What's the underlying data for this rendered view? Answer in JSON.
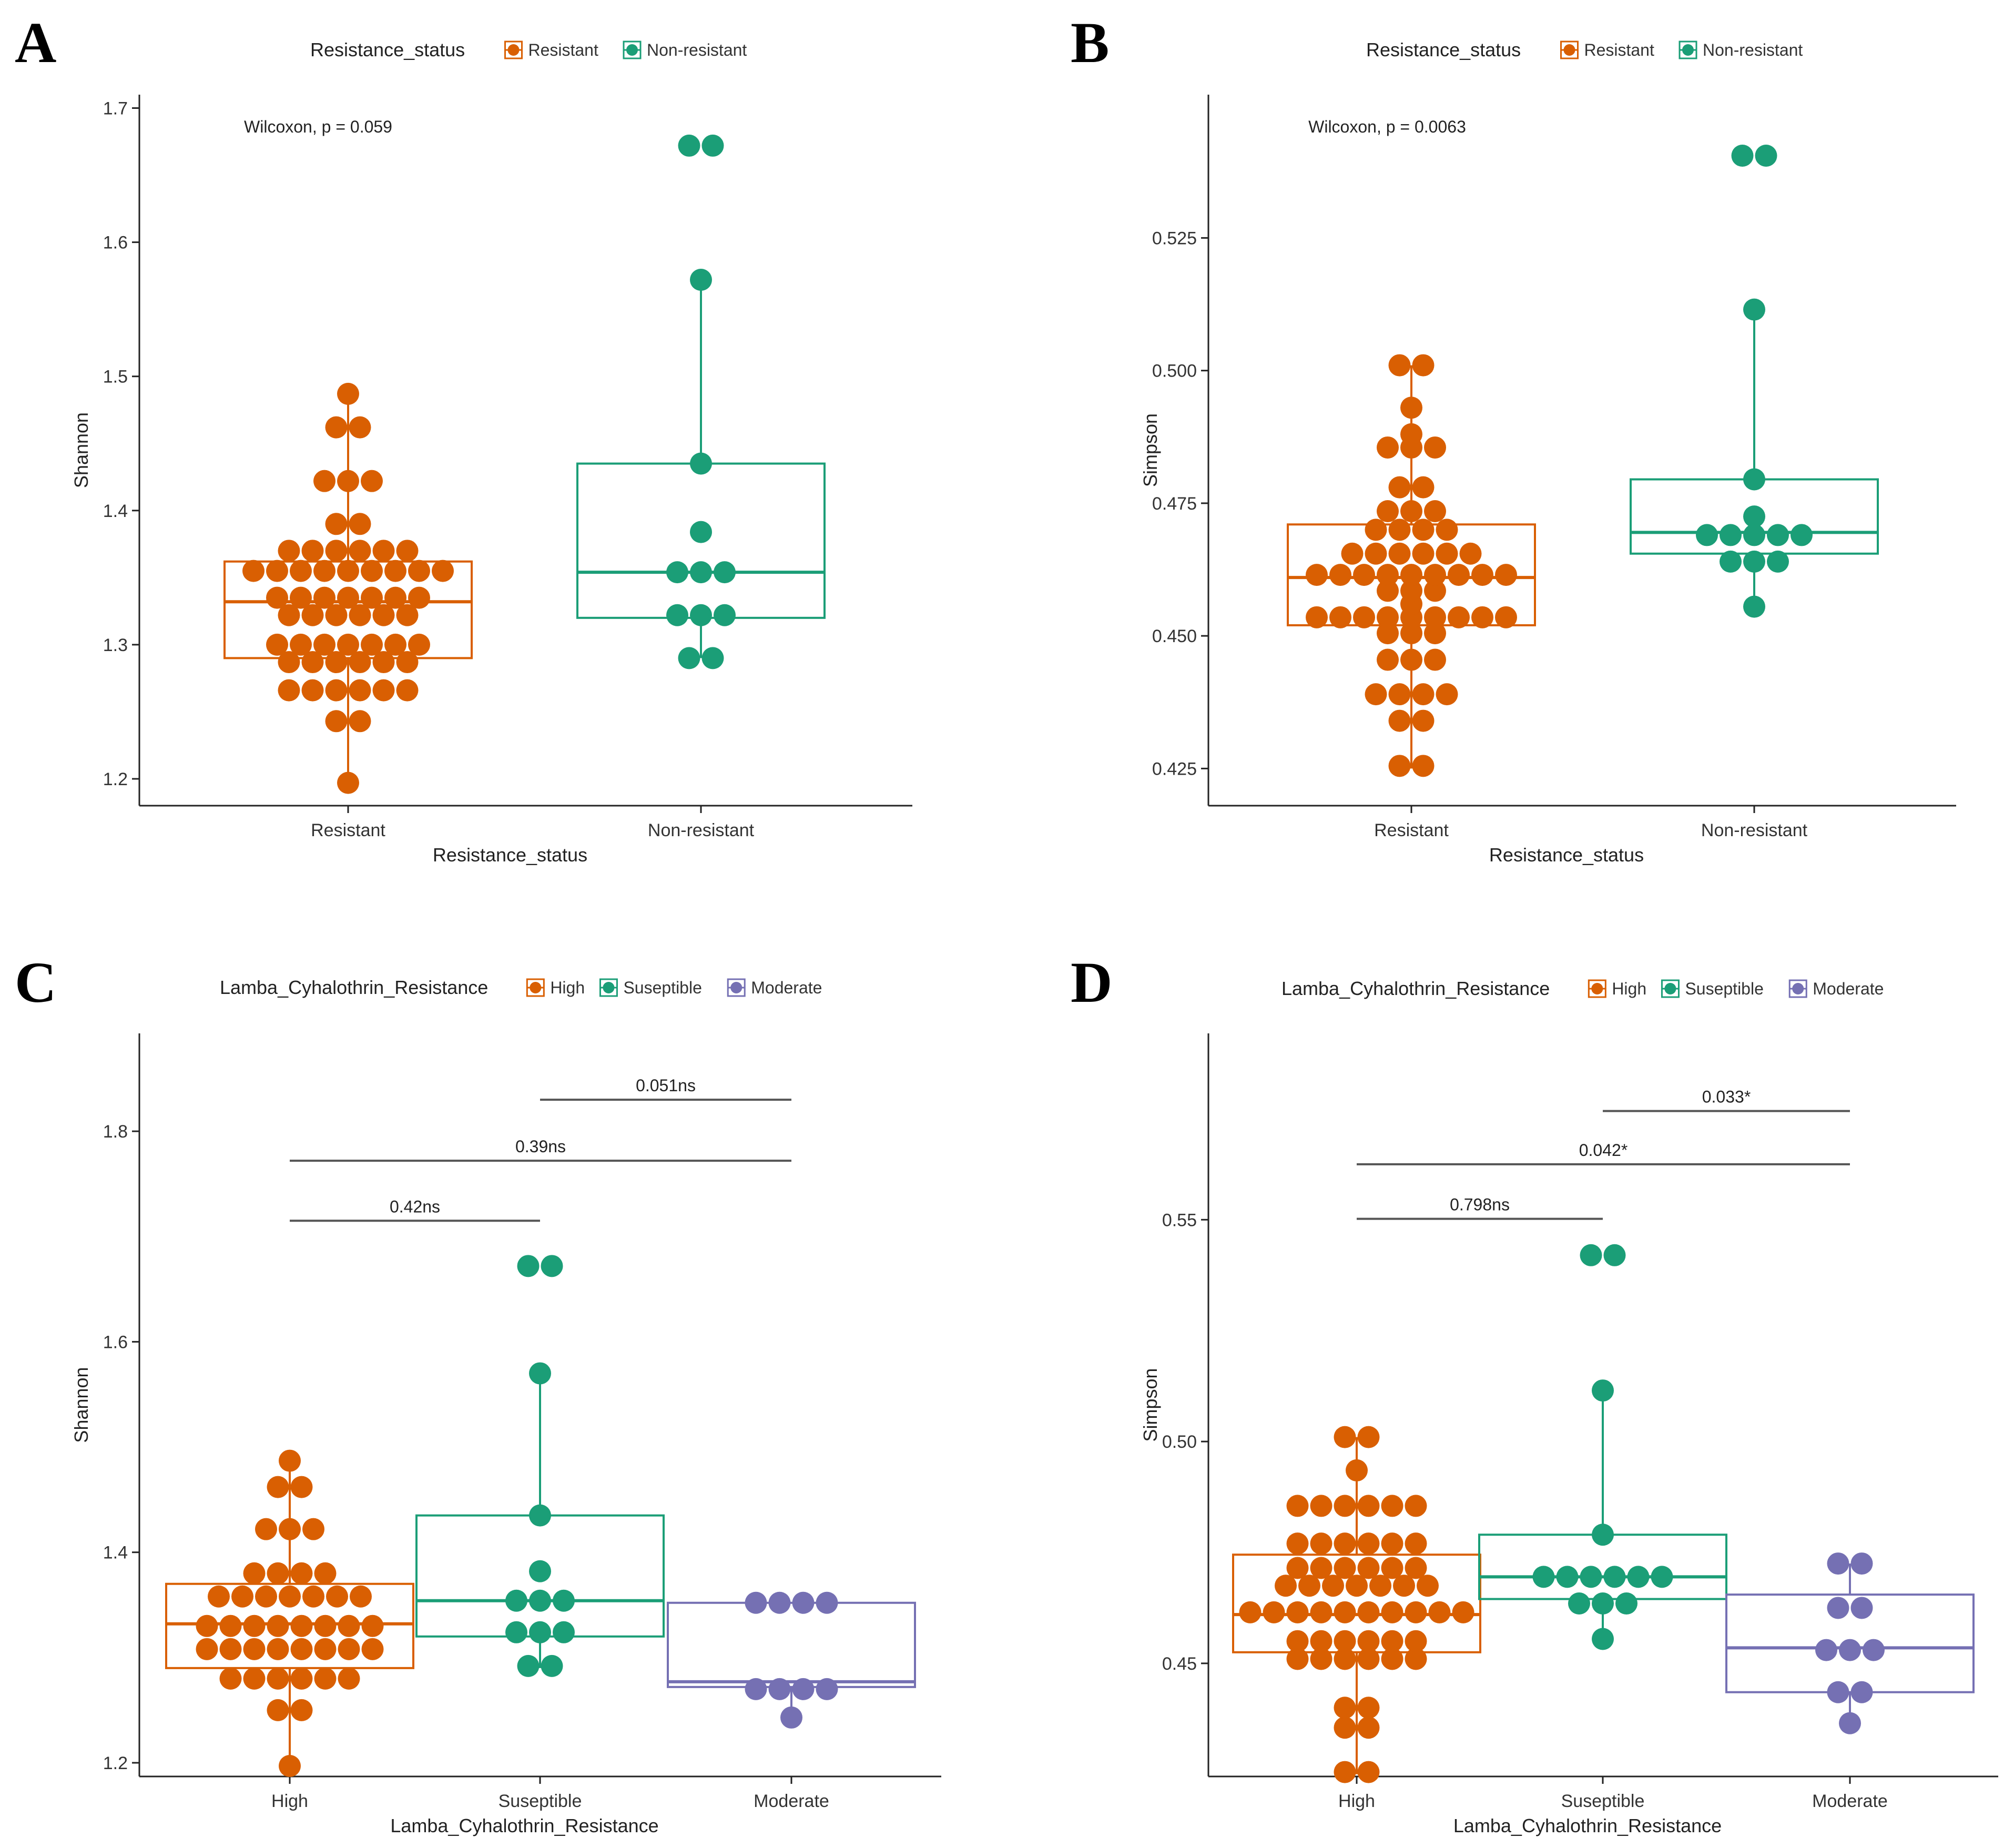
{
  "colors": {
    "High": "#d95f02",
    "Resistant": "#d95f02",
    "Non-resistant": "#1b9e77",
    "Suseptible": "#1b9e77",
    "Moderate": "#7570b3"
  },
  "chart_data": [
    {
      "panel": "A",
      "type": "boxplot-dotplot",
      "ylabel": "Shannon",
      "xlabel": "Resistance_status",
      "legend_title": "Resistance_status",
      "legend_position": "top",
      "categories": [
        "Resistant",
        "Non-resistant"
      ],
      "ylim": [
        1.18,
        1.71
      ],
      "yticks": [
        1.2,
        1.3,
        1.4,
        1.5,
        1.6,
        1.7
      ],
      "tick_decimals": 1,
      "annotation": "Wilcoxon, p = 0.059",
      "boxes": [
        {
          "q1": 1.29,
          "median": 1.332,
          "q3": 1.362,
          "low": 1.197,
          "high": 1.487
        },
        {
          "q1": 1.32,
          "median": 1.354,
          "q3": 1.435,
          "low": 1.29,
          "high": 1.572
        }
      ],
      "points": [
        [
          [
            1.197,
            1
          ],
          [
            1.243,
            2
          ],
          [
            1.266,
            6
          ],
          [
            1.287,
            6
          ],
          [
            1.3,
            7
          ],
          [
            1.322,
            6
          ],
          [
            1.335,
            7
          ],
          [
            1.355,
            9
          ],
          [
            1.37,
            6
          ],
          [
            1.39,
            2
          ],
          [
            1.422,
            3
          ],
          [
            1.462,
            2
          ],
          [
            1.487,
            1
          ]
        ],
        [
          [
            1.29,
            2
          ],
          [
            1.322,
            3
          ],
          [
            1.354,
            3
          ],
          [
            1.384,
            1
          ],
          [
            1.435,
            1
          ],
          [
            1.572,
            1
          ],
          [
            1.672,
            2
          ]
        ]
      ],
      "brackets": []
    },
    {
      "panel": "B",
      "type": "boxplot-dotplot",
      "ylabel": "Simpson",
      "xlabel": "Resistance_status",
      "legend_title": "Resistance_status",
      "legend_position": "top",
      "categories": [
        "Resistant",
        "Non-resistant"
      ],
      "ylim": [
        0.418,
        0.552
      ],
      "yticks": [
        0.425,
        0.45,
        0.475,
        0.5,
        0.525
      ],
      "tick_decimals": 3,
      "annotation": "Wilcoxon, p = 0.0063",
      "boxes": [
        {
          "q1": 0.452,
          "median": 0.461,
          "q3": 0.471,
          "low": 0.425,
          "high": 0.501
        },
        {
          "q1": 0.4655,
          "median": 0.4695,
          "q3": 0.4795,
          "low": 0.455,
          "high": 0.5115
        }
      ],
      "points": [
        [
          [
            0.4255,
            2
          ],
          [
            0.434,
            2
          ],
          [
            0.439,
            4
          ],
          [
            0.4455,
            3
          ],
          [
            0.4505,
            3
          ],
          [
            0.4535,
            9
          ],
          [
            0.456,
            1
          ],
          [
            0.4585,
            3
          ],
          [
            0.4615,
            9
          ],
          [
            0.4655,
            6
          ],
          [
            0.47,
            4
          ],
          [
            0.4735,
            3
          ],
          [
            0.478,
            2
          ],
          [
            0.4855,
            3
          ],
          [
            0.488,
            1
          ],
          [
            0.493,
            1
          ],
          [
            0.501,
            2
          ]
        ],
        [
          [
            0.4555,
            1
          ],
          [
            0.464,
            3
          ],
          [
            0.469,
            5
          ],
          [
            0.4725,
            1
          ],
          [
            0.4795,
            1
          ],
          [
            0.5115,
            1
          ],
          [
            0.5405,
            2
          ]
        ]
      ],
      "brackets": []
    },
    {
      "panel": "C",
      "type": "boxplot-dotplot",
      "ylabel": "Shannon",
      "xlabel": "Lamba_Cyhalothrin_Resistance",
      "legend_title": "Lamba_Cyhalothrin_Resistance",
      "legend_position": "top",
      "categories": [
        "High",
        "Suseptible",
        "Moderate"
      ],
      "ylim": [
        1.187,
        1.893
      ],
      "yticks": [
        1.2,
        1.4,
        1.6,
        1.8
      ],
      "tick_decimals": 1,
      "annotation": "",
      "boxes": [
        {
          "q1": 1.29,
          "median": 1.332,
          "q3": 1.37,
          "low": 1.197,
          "high": 1.487
        },
        {
          "q1": 1.32,
          "median": 1.354,
          "q3": 1.435,
          "low": 1.29,
          "high": 1.572
        },
        {
          "q1": 1.272,
          "median": 1.277,
          "q3": 1.352,
          "low": 1.243,
          "high": 1.352
        }
      ],
      "points": [
        [
          [
            1.197,
            1
          ],
          [
            1.25,
            2
          ],
          [
            1.28,
            6
          ],
          [
            1.308,
            8
          ],
          [
            1.33,
            8
          ],
          [
            1.358,
            7
          ],
          [
            1.38,
            4
          ],
          [
            1.422,
            3
          ],
          [
            1.462,
            2
          ],
          [
            1.487,
            1
          ]
        ],
        [
          [
            1.292,
            2
          ],
          [
            1.324,
            3
          ],
          [
            1.354,
            3
          ],
          [
            1.382,
            1
          ],
          [
            1.435,
            1
          ],
          [
            1.57,
            1
          ],
          [
            1.672,
            2
          ]
        ],
        [
          [
            1.243,
            1
          ],
          [
            1.27,
            4
          ],
          [
            1.352,
            4
          ]
        ]
      ],
      "brackets": [
        {
          "from": 0,
          "to": 1,
          "y": 1.715,
          "label": "0.42ns"
        },
        {
          "from": 0,
          "to": 2,
          "y": 1.772,
          "label": "0.39ns"
        },
        {
          "from": 1,
          "to": 2,
          "y": 1.83,
          "label": "0.051ns"
        }
      ]
    },
    {
      "panel": "D",
      "type": "boxplot-dotplot",
      "ylabel": "Simpson",
      "xlabel": "Lamba_Cyhalothrin_Resistance",
      "legend_title": "Lamba_Cyhalothrin_Resistance",
      "legend_position": "top",
      "categories": [
        "High",
        "Suseptible",
        "Moderate"
      ],
      "ylim": [
        0.4245,
        0.592
      ],
      "yticks": [
        0.45,
        0.5,
        0.55
      ],
      "tick_decimals": 2,
      "annotation": "",
      "boxes": [
        {
          "q1": 0.4525,
          "median": 0.461,
          "q3": 0.4745,
          "low": 0.425,
          "high": 0.501
        },
        {
          "q1": 0.4645,
          "median": 0.4695,
          "q3": 0.479,
          "low": 0.4555,
          "high": 0.5115
        },
        {
          "q1": 0.4435,
          "median": 0.4535,
          "q3": 0.4655,
          "low": 0.4365,
          "high": 0.4725
        }
      ],
      "points": [
        [
          [
            0.4255,
            2
          ],
          [
            0.4355,
            2
          ],
          [
            0.44,
            2
          ],
          [
            0.451,
            6
          ],
          [
            0.455,
            6
          ],
          [
            0.4615,
            10
          ],
          [
            0.4675,
            7
          ],
          [
            0.4715,
            6
          ],
          [
            0.477,
            6
          ],
          [
            0.4855,
            6
          ],
          [
            0.4935,
            1
          ],
          [
            0.501,
            2
          ]
        ],
        [
          [
            0.4555,
            1
          ],
          [
            0.4635,
            3
          ],
          [
            0.4695,
            6
          ],
          [
            0.479,
            1
          ],
          [
            0.5115,
            1
          ],
          [
            0.542,
            2
          ]
        ],
        [
          [
            0.4365,
            1
          ],
          [
            0.4435,
            2
          ],
          [
            0.453,
            3
          ],
          [
            0.4625,
            2
          ],
          [
            0.4725,
            2
          ]
        ]
      ],
      "brackets": [
        {
          "from": 0,
          "to": 1,
          "y": 0.5,
          "label": "0.798ns",
          "y_frac": 0
        },
        {
          "from": 0,
          "to": 2,
          "y": 0.5,
          "label": "0.042*",
          "y_frac": 0
        },
        {
          "from": 1,
          "to": 2,
          "y": 0.5,
          "label": "0.033*",
          "y_frac": 0
        }
      ]
    }
  ]
}
